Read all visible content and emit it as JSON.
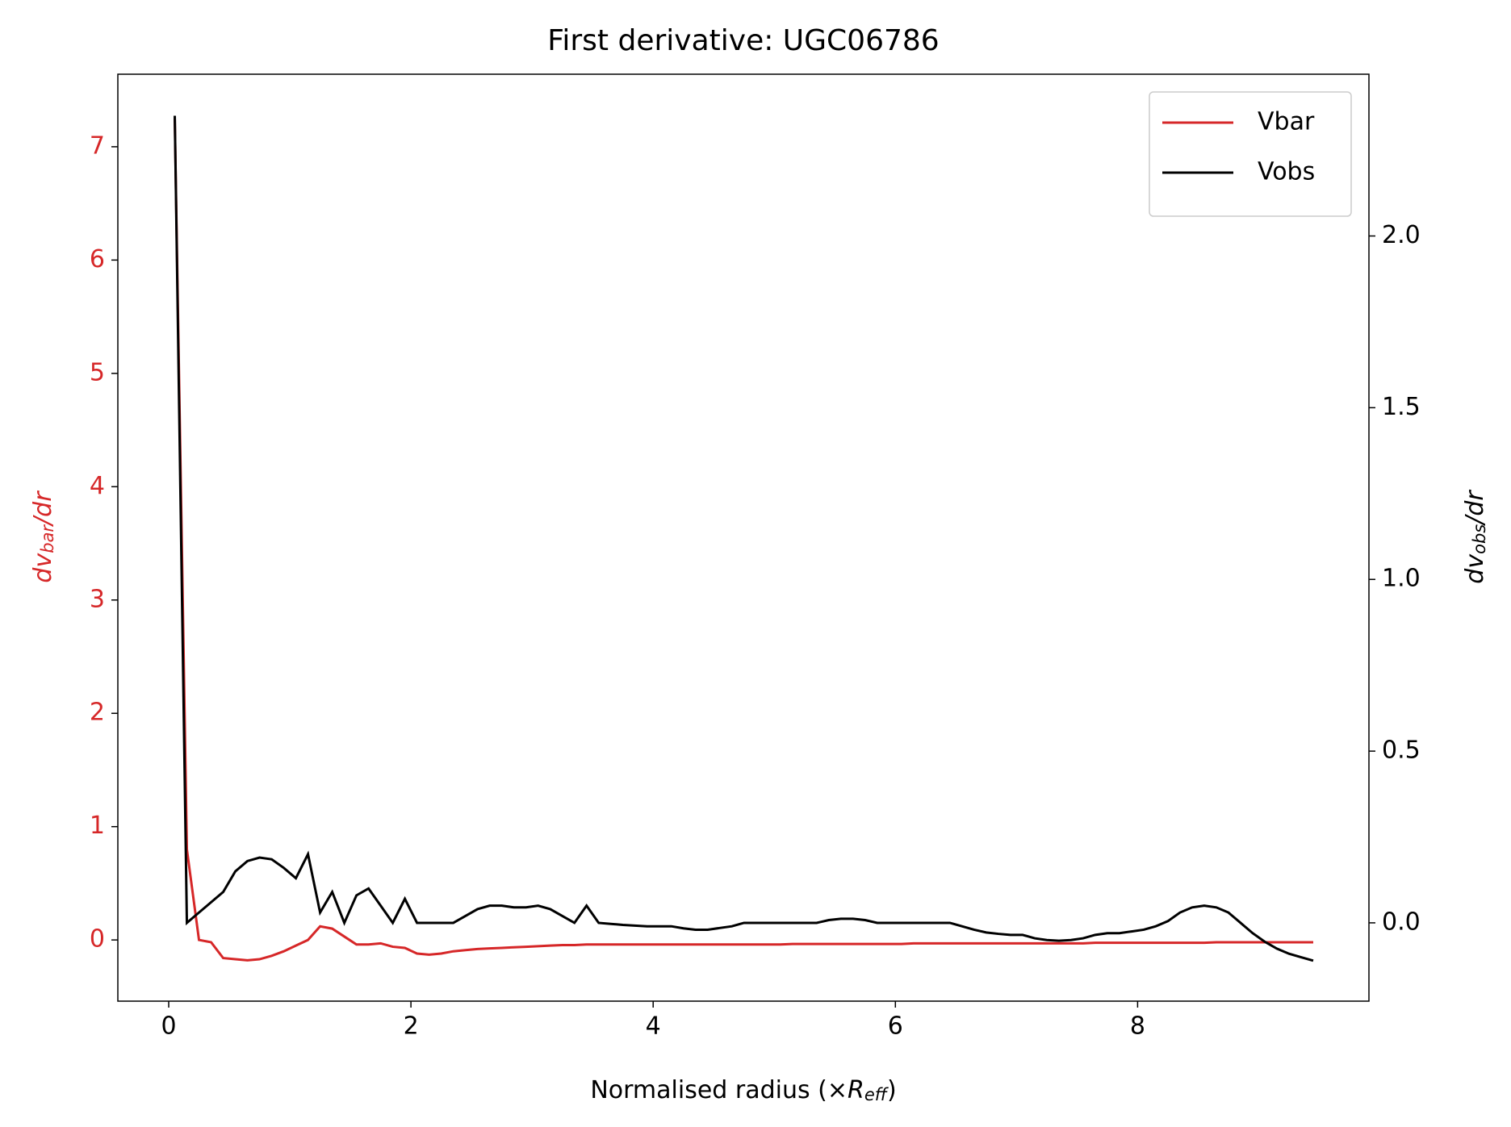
{
  "chart_data": {
    "type": "line",
    "title": "First derivative: UGC06786",
    "xlabel": [
      "Normalised radius (×",
      "R",
      "eff",
      ")"
    ],
    "ylabel": [
      "dv",
      "bar",
      "/dr"
    ],
    "y2label": [
      "dv",
      "obs",
      "/dr"
    ],
    "x": [
      0.05,
      0.15,
      0.25,
      0.35,
      0.45,
      0.55,
      0.65,
      0.75,
      0.85,
      0.95,
      1.05,
      1.15,
      1.25,
      1.35,
      1.45,
      1.55,
      1.65,
      1.75,
      1.85,
      1.95,
      2.05,
      2.15,
      2.25,
      2.35,
      2.45,
      2.55,
      2.65,
      2.75,
      2.85,
      2.95,
      3.05,
      3.15,
      3.25,
      3.35,
      3.45,
      3.55,
      3.65,
      3.75,
      3.85,
      3.95,
      4.05,
      4.15,
      4.25,
      4.35,
      4.45,
      4.55,
      4.65,
      4.75,
      4.85,
      4.95,
      5.05,
      5.15,
      5.25,
      5.35,
      5.45,
      5.55,
      5.65,
      5.75,
      5.85,
      5.95,
      6.05,
      6.15,
      6.25,
      6.35,
      6.45,
      6.55,
      6.65,
      6.75,
      6.85,
      6.95,
      7.05,
      7.15,
      7.25,
      7.35,
      7.45,
      7.55,
      7.65,
      7.75,
      7.85,
      7.95,
      8.05,
      8.15,
      8.25,
      8.35,
      8.45,
      8.55,
      8.65,
      8.75,
      8.85,
      8.95,
      9.05,
      9.15,
      9.25,
      9.35,
      9.45
    ],
    "series": [
      {
        "name": "Vbar",
        "color": "#d62728",
        "axis": "y",
        "values": [
          7.25,
          0.8,
          0.0,
          -0.02,
          -0.16,
          -0.17,
          -0.18,
          -0.17,
          -0.14,
          -0.1,
          -0.05,
          0.0,
          0.12,
          0.1,
          0.03,
          -0.04,
          -0.04,
          -0.03,
          -0.06,
          -0.07,
          -0.12,
          -0.13,
          -0.12,
          -0.1,
          -0.09,
          -0.08,
          -0.075,
          -0.07,
          -0.065,
          -0.06,
          -0.055,
          -0.05,
          -0.045,
          -0.045,
          -0.04,
          -0.04,
          -0.04,
          -0.04,
          -0.04,
          -0.04,
          -0.04,
          -0.04,
          -0.04,
          -0.04,
          -0.04,
          -0.04,
          -0.04,
          -0.04,
          -0.04,
          -0.04,
          -0.04,
          -0.035,
          -0.035,
          -0.035,
          -0.035,
          -0.035,
          -0.035,
          -0.035,
          -0.035,
          -0.035,
          -0.035,
          -0.03,
          -0.03,
          -0.03,
          -0.03,
          -0.03,
          -0.03,
          -0.03,
          -0.03,
          -0.03,
          -0.03,
          -0.03,
          -0.03,
          -0.03,
          -0.03,
          -0.03,
          -0.025,
          -0.025,
          -0.025,
          -0.025,
          -0.025,
          -0.025,
          -0.025,
          -0.025,
          -0.025,
          -0.025,
          -0.02,
          -0.02,
          -0.02,
          -0.02,
          -0.02,
          -0.02,
          -0.02,
          -0.02,
          -0.02
        ]
      },
      {
        "name": "Vobs",
        "color": "#000000",
        "axis": "y2",
        "values": [
          2.35,
          0.0,
          0.03,
          0.06,
          0.09,
          0.15,
          0.18,
          0.19,
          0.185,
          0.16,
          0.13,
          0.2,
          0.03,
          0.09,
          0.0,
          0.08,
          0.1,
          0.05,
          0.0,
          0.07,
          0.0,
          0.0,
          0.0,
          0.0,
          0.02,
          0.04,
          0.05,
          0.05,
          0.045,
          0.045,
          0.05,
          0.04,
          0.02,
          0.0,
          0.05,
          0.0,
          -0.003,
          -0.006,
          -0.008,
          -0.01,
          -0.01,
          -0.01,
          -0.016,
          -0.02,
          -0.02,
          -0.015,
          -0.01,
          0.0,
          0.0,
          0.0,
          0.0,
          0.0,
          0.0,
          0.0,
          0.008,
          0.012,
          0.012,
          0.008,
          0.0,
          0.0,
          0.0,
          0.0,
          0.0,
          0.0,
          0.0,
          -0.01,
          -0.02,
          -0.028,
          -0.032,
          -0.035,
          -0.035,
          -0.045,
          -0.05,
          -0.052,
          -0.05,
          -0.045,
          -0.035,
          -0.03,
          -0.03,
          -0.025,
          -0.02,
          -0.01,
          0.005,
          0.03,
          0.045,
          0.05,
          0.045,
          0.03,
          0.0,
          -0.03,
          -0.055,
          -0.075,
          -0.09,
          -0.1,
          -0.11
        ]
      }
    ],
    "xlim": [
      -0.42,
      9.91
    ],
    "xticks": [
      0,
      2,
      4,
      6,
      8
    ],
    "ylim": [
      -0.54,
      7.64
    ],
    "yticks": [
      0,
      1,
      2,
      3,
      4,
      5,
      6,
      7
    ],
    "ytick_color": "#d62728",
    "y2lim": [
      -0.228,
      2.471
    ],
    "y2ticks": [
      {
        "value": 0,
        "label": "0.0"
      },
      0.5,
      {
        "value": 1,
        "label": "1.0"
      },
      1.5,
      {
        "value": 2,
        "label": "2.0"
      }
    ],
    "legend": "upper right"
  }
}
